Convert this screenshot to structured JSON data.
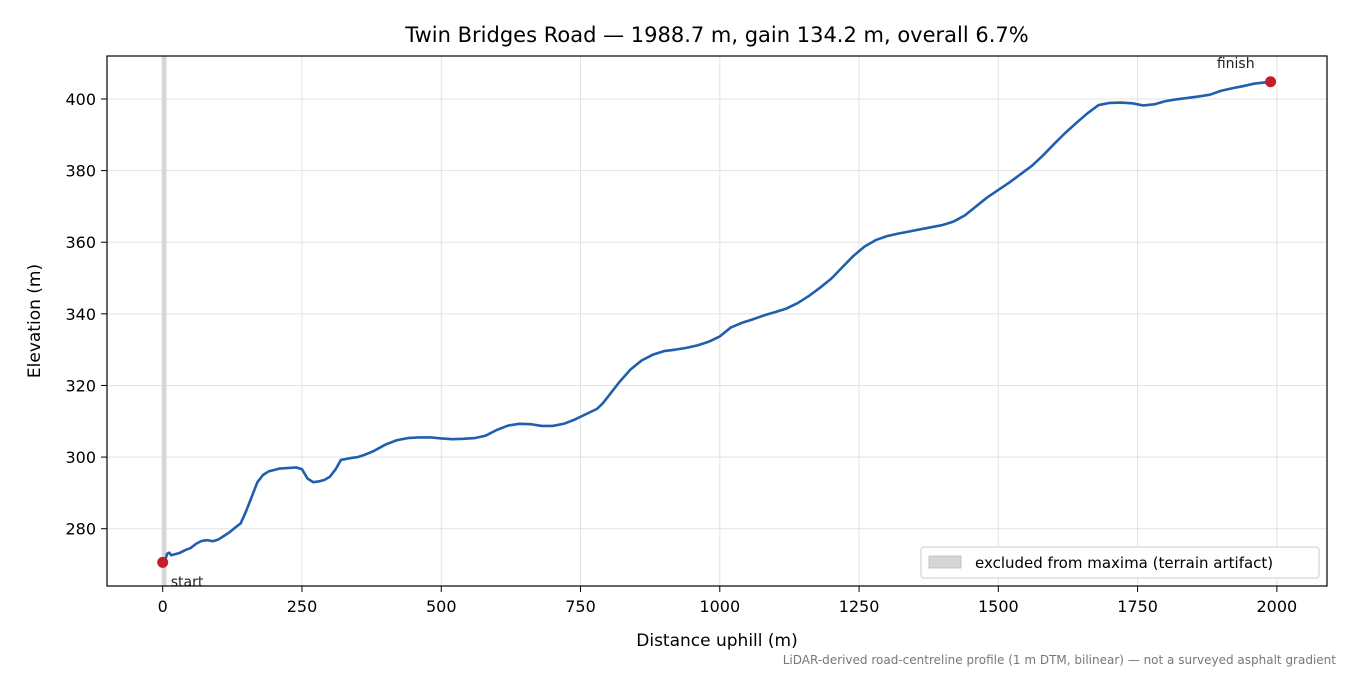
{
  "chart_data": {
    "type": "line",
    "title": "Twin Bridges Road — 1988.7 m, gain 134.2 m, overall 6.7%",
    "xlabel": "Distance uphill (m)",
    "ylabel": "Elevation (m)",
    "xlim": [
      -100,
      2090
    ],
    "ylim": [
      264,
      412
    ],
    "xticks": [
      0,
      250,
      500,
      750,
      1000,
      1250,
      1500,
      1750,
      2000
    ],
    "yticks": [
      280,
      300,
      320,
      340,
      360,
      380,
      400
    ],
    "grid": true,
    "line_color": "#1f5fad",
    "series": [
      {
        "x": [
          0,
          5,
          8,
          12,
          15,
          20,
          30,
          40,
          50,
          60,
          70,
          80,
          90,
          100,
          110,
          120,
          130,
          140,
          150,
          160,
          170,
          180,
          190,
          200,
          210,
          220,
          230,
          240,
          250,
          260,
          270,
          280,
          290,
          300,
          310,
          320,
          330,
          340,
          350,
          360,
          370,
          380,
          400,
          420,
          440,
          460,
          480,
          500,
          520,
          540,
          560,
          580,
          600,
          620,
          640,
          660,
          680,
          700,
          720,
          740,
          760,
          780,
          790,
          800,
          820,
          840,
          860,
          880,
          900,
          920,
          940,
          960,
          980,
          1000,
          1020,
          1040,
          1060,
          1080,
          1100,
          1120,
          1140,
          1160,
          1180,
          1200,
          1220,
          1240,
          1260,
          1280,
          1300,
          1320,
          1340,
          1360,
          1380,
          1400,
          1420,
          1440,
          1460,
          1480,
          1500,
          1520,
          1540,
          1560,
          1580,
          1600,
          1620,
          1640,
          1660,
          1680,
          1700,
          1720,
          1740,
          1760,
          1780,
          1800,
          1820,
          1840,
          1860,
          1880,
          1900,
          1920,
          1940,
          1960,
          1988.7
        ],
        "y": [
          270.6,
          271.5,
          273.0,
          273.3,
          272.6,
          272.8,
          273.2,
          274.0,
          274.6,
          275.8,
          276.6,
          276.8,
          276.5,
          277.0,
          278.0,
          279.0,
          280.3,
          281.5,
          285.0,
          289.0,
          293.0,
          295.0,
          296.0,
          296.4,
          296.8,
          296.9,
          297.0,
          297.1,
          296.6,
          294.0,
          293.0,
          293.2,
          293.6,
          294.5,
          296.5,
          299.2,
          299.5,
          299.8,
          300.0,
          300.5,
          301.1,
          301.8,
          303.5,
          304.7,
          305.3,
          305.5,
          305.5,
          305.2,
          305.0,
          305.1,
          305.3,
          306.0,
          307.6,
          308.8,
          309.3,
          309.2,
          308.7,
          308.7,
          309.3,
          310.5,
          312.0,
          313.5,
          315.0,
          317.0,
          321.0,
          324.5,
          327.0,
          328.6,
          329.6,
          330.0,
          330.5,
          331.2,
          332.2,
          333.7,
          336.2,
          337.5,
          338.5,
          339.6,
          340.5,
          341.5,
          343.0,
          345.0,
          347.3,
          349.8,
          353.0,
          356.2,
          358.8,
          360.6,
          361.7,
          362.4,
          363.0,
          363.6,
          364.2,
          364.8,
          365.8,
          367.5,
          370.0,
          372.5,
          374.6,
          376.7,
          379.0,
          381.3,
          384.2,
          387.4,
          390.5,
          393.3,
          396.0,
          398.3,
          398.9,
          399.0,
          398.8,
          398.2,
          398.5,
          399.4,
          399.9,
          400.3,
          400.7,
          401.2,
          402.3,
          403.0,
          403.6,
          404.3,
          404.8
        ]
      }
    ],
    "markers": [
      {
        "x": 0,
        "y": 270.6,
        "label": "start",
        "color": "#c41e2a"
      },
      {
        "x": 1988.7,
        "y": 404.8,
        "label": "finish",
        "color": "#c41e2a"
      }
    ],
    "excluded_band": {
      "x0": 0,
      "x1": 5,
      "color": "#d6d6d6"
    },
    "legend": {
      "label": "excluded from maxima (terrain artifact)",
      "placement": "lower-right"
    },
    "footnote": "LiDAR-derived road-centreline profile (1 m DTM, bilinear) — not a surveyed asphalt gradient"
  }
}
